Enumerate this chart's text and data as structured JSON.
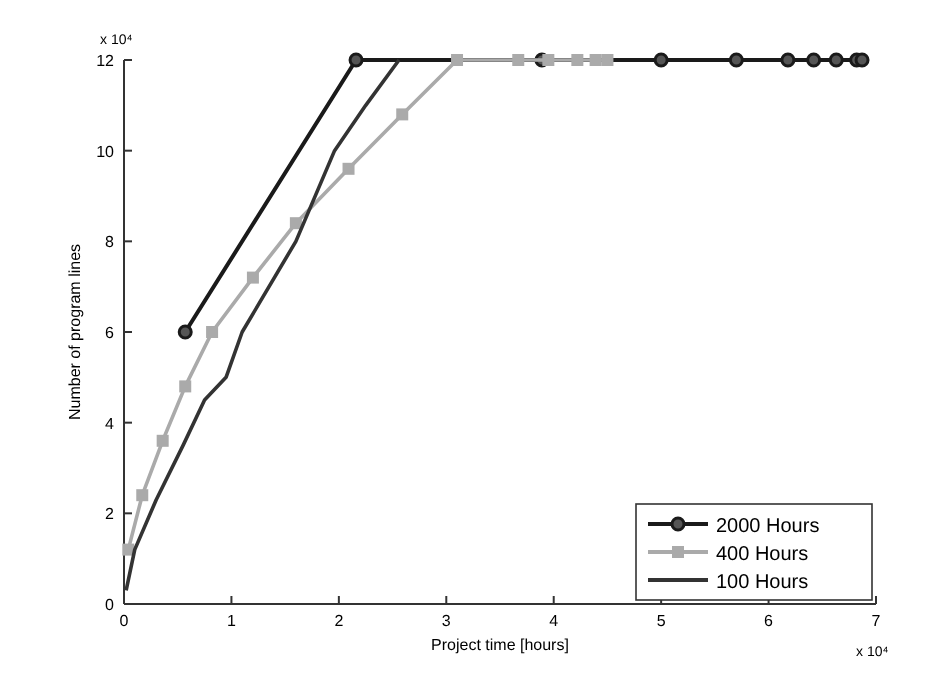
{
  "chart_data": {
    "type": "line",
    "xlabel": "Project time [hours]",
    "ylabel": "Number of program lines",
    "annotations": [
      "x 10⁴",
      "x 10⁴"
    ],
    "xlim": [
      0,
      7
    ],
    "xticks": [
      0,
      1,
      2,
      3,
      4,
      5,
      6,
      7
    ],
    "ylim": [
      0,
      12
    ],
    "yticks": [
      0,
      2,
      4,
      6,
      8,
      10,
      12
    ],
    "legend": "bottom right",
    "grid": false,
    "series": [
      {
        "name": "2000 Hours",
        "color": "#1a1a1a",
        "marker": "circle",
        "x": [
          0.57,
          2.16,
          3.89,
          5.0,
          5.7,
          6.18,
          6.42,
          6.63,
          6.82,
          6.87
        ],
        "values": [
          6,
          12,
          12,
          12,
          12,
          12,
          12,
          12,
          12,
          12
        ]
      },
      {
        "name": "400 Hours",
        "color": "#aaaaaa",
        "marker": "square",
        "x": [
          0.04,
          0.17,
          0.36,
          0.57,
          0.82,
          1.2,
          1.6,
          2.09,
          2.59,
          3.1,
          3.67,
          3.95,
          4.22,
          4.39,
          4.5
        ],
        "values": [
          1.2,
          2.4,
          3.6,
          4.8,
          6,
          7.2,
          8.4,
          9.6,
          10.8,
          12,
          12,
          12,
          12,
          12,
          12
        ]
      },
      {
        "name": "100 Hours",
        "color": "#333333",
        "marker": "none",
        "x": [
          0.02,
          0.1,
          0.3,
          0.55,
          0.75,
          0.95,
          1.1,
          1.6,
          1.96,
          2.25,
          2.56
        ],
        "values": [
          0.3,
          1.2,
          2.3,
          3.5,
          4.5,
          5.0,
          6.0,
          8.0,
          10.0,
          11.0,
          12
        ]
      }
    ]
  }
}
